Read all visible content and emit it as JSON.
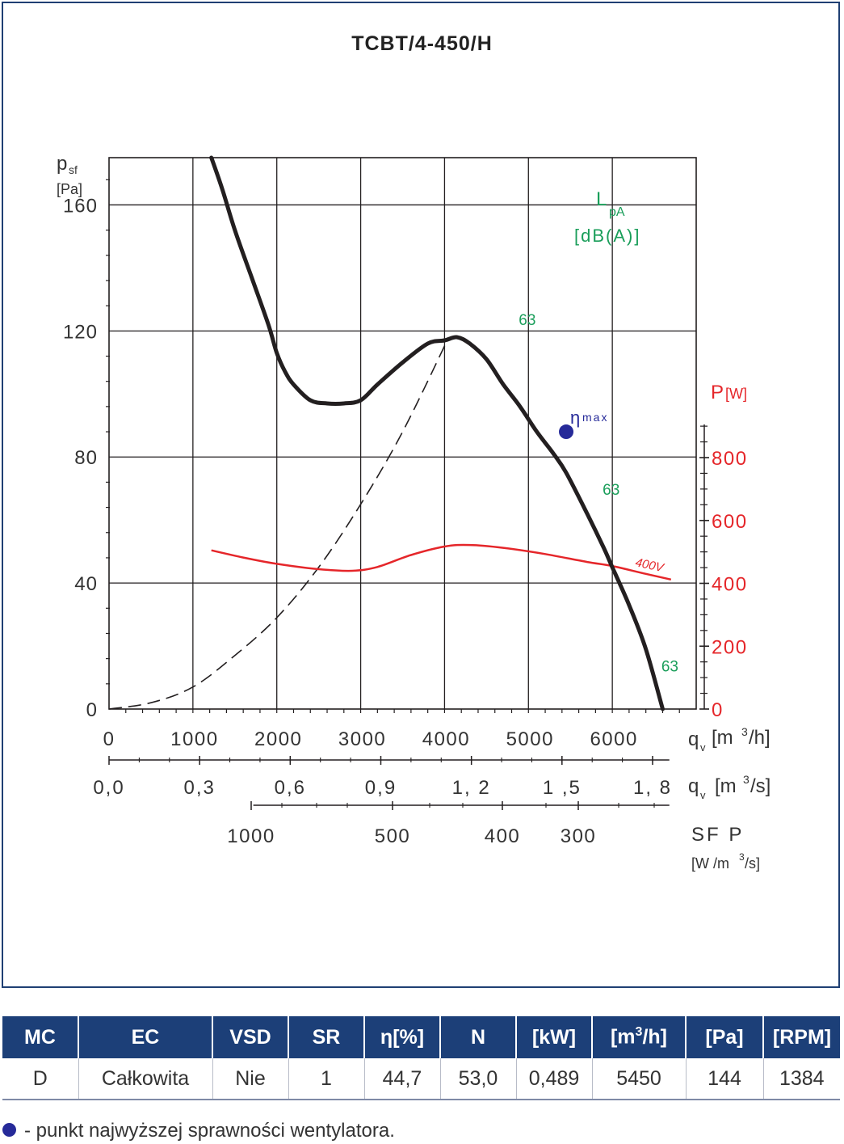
{
  "title": "TCBT/4-450/H",
  "chart_data": {
    "type": "line",
    "title": "TCBT/4-450/H",
    "y_axis": {
      "label": "p",
      "label_sub": "sf",
      "unit": "[Pa]",
      "range": [
        0,
        175
      ],
      "ticks": [
        0,
        40,
        80,
        120,
        160
      ]
    },
    "x_axis": {
      "label": "q",
      "label_sub": "v",
      "unit_pre": "[m",
      "unit_sup": "3",
      "unit_post": "/h]",
      "range": [
        0,
        7000
      ],
      "ticks": [
        0,
        1000,
        2000,
        3000,
        4000,
        5000,
        6000
      ],
      "tick_labels": [
        "0",
        "1000",
        "2000",
        "3000",
        "4000",
        "5000",
        "6000"
      ]
    },
    "x2_axis": {
      "label": "q",
      "label_sub": "v",
      "unit_pre": "[m",
      "unit_sup": "3",
      "unit_post": "/s]",
      "ticks": [
        0,
        0.3,
        0.6,
        0.9,
        1.2,
        1.5,
        1.8
      ],
      "tick_labels": [
        "0,0",
        "0,3",
        "0,6",
        "0,9",
        "1, 2",
        "1 ,5",
        "1, 8"
      ]
    },
    "sfp_axis": {
      "label": "SF P",
      "unit_pre": "[W /m",
      "unit_sup": "3",
      "unit_post": "/s]",
      "ticks": [
        1000,
        500,
        400,
        300
      ],
      "tick_labels": [
        "1000",
        "500",
        "400",
        "300"
      ]
    },
    "power_axis": {
      "label": "P",
      "unit": "[W]",
      "range": [
        0,
        900
      ],
      "ticks": [
        0,
        200,
        400,
        600,
        800
      ],
      "color": "#e5262a"
    },
    "grid": true,
    "series": [
      {
        "role": "pressure",
        "color": "#231f20",
        "points": [
          [
            1220,
            175
          ],
          [
            1350,
            165
          ],
          [
            1500,
            152
          ],
          [
            1700,
            137
          ],
          [
            1900,
            122
          ],
          [
            2000,
            113
          ],
          [
            2100,
            107
          ],
          [
            2200,
            103
          ],
          [
            2400,
            98
          ],
          [
            2600,
            97
          ],
          [
            2800,
            97
          ],
          [
            3000,
            98
          ],
          [
            3200,
            103
          ],
          [
            3500,
            110
          ],
          [
            3800,
            116
          ],
          [
            4000,
            117
          ],
          [
            4150,
            118
          ],
          [
            4300,
            116
          ],
          [
            4500,
            111
          ],
          [
            4700,
            103
          ],
          [
            4900,
            96
          ],
          [
            5100,
            88
          ],
          [
            5300,
            81
          ],
          [
            5450,
            75
          ],
          [
            5700,
            62
          ],
          [
            5900,
            51
          ],
          [
            6000,
            45
          ],
          [
            6200,
            33
          ],
          [
            6400,
            19
          ],
          [
            6600,
            0
          ]
        ]
      },
      {
        "role": "system",
        "color": "#231f20",
        "points": [
          [
            0,
            0
          ],
          [
            500,
            2
          ],
          [
            1000,
            7
          ],
          [
            1500,
            17
          ],
          [
            2000,
            29
          ],
          [
            2500,
            45
          ],
          [
            3000,
            65
          ],
          [
            3500,
            88
          ],
          [
            4050,
            118
          ]
        ]
      },
      {
        "role": "power",
        "name": "400V",
        "color": "#e5262a",
        "points": [
          [
            1220,
            505
          ],
          [
            1600,
            482
          ],
          [
            2000,
            462
          ],
          [
            2500,
            445
          ],
          [
            2900,
            440
          ],
          [
            3200,
            452
          ],
          [
            3600,
            490
          ],
          [
            4000,
            517
          ],
          [
            4300,
            522
          ],
          [
            4700,
            513
          ],
          [
            5200,
            493
          ],
          [
            5700,
            468
          ],
          [
            6000,
            455
          ],
          [
            6400,
            430
          ],
          [
            6700,
            412
          ]
        ]
      }
    ],
    "annotations": [
      {
        "text": "63",
        "x": 5000,
        "y": 124
      },
      {
        "text": "63",
        "x": 6000,
        "y": 70
      },
      {
        "text": "63",
        "x": 6700,
        "y": 14
      }
    ],
    "lpa_label": "L",
    "lpa_sub": "pA",
    "lpa_unit": "[dB(A)]",
    "eta_label": "η",
    "eta_sub": "max",
    "eta_point": {
      "x": 5450,
      "y": 88
    }
  },
  "colors": {
    "lpa": "#1a9e5a",
    "eta": "#262a99",
    "power": "#e5262a",
    "header": "#1c3f78"
  },
  "table": {
    "headers": [
      "MC",
      "EC",
      "VSD",
      "SR",
      "η[%]",
      "N",
      "[kW]",
      "[m³/h]",
      "[Pa]",
      "[RPM]"
    ],
    "row": [
      "D",
      "Całkowita",
      "Nie",
      "1",
      "44,7",
      "53,0",
      "0,489",
      "5450",
      "144",
      "1384"
    ]
  },
  "legend_note": "- punkt najwyższej sprawności wentylatora."
}
